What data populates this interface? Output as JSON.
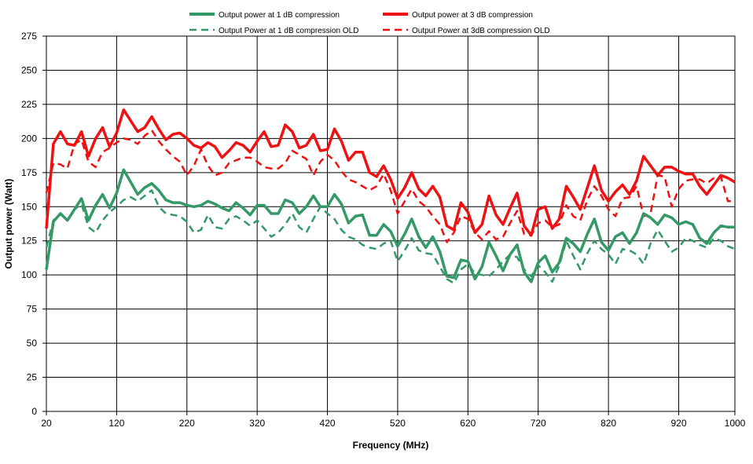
{
  "chart_data": {
    "type": "line",
    "title": "",
    "xlabel": "Frequency (MHz)",
    "ylabel": "Output power (Watt)",
    "xlim": [
      20,
      1000
    ],
    "ylim": [
      0,
      275
    ],
    "x_ticks": [
      20,
      120,
      220,
      320,
      420,
      520,
      620,
      720,
      820,
      920,
      1000
    ],
    "y_ticks": [
      0,
      25,
      50,
      75,
      100,
      125,
      150,
      175,
      200,
      225,
      250,
      275
    ],
    "grid": true,
    "legend_position": "top",
    "series": [
      {
        "name": "Output power at 1 dB compression",
        "color": "#339966",
        "dash": "solid",
        "x": [
          20,
          30,
          40,
          50,
          60,
          70,
          80,
          90,
          100,
          110,
          120,
          130,
          140,
          150,
          160,
          170,
          180,
          190,
          200,
          210,
          220,
          230,
          240,
          250,
          260,
          270,
          280,
          290,
          300,
          310,
          320,
          330,
          340,
          350,
          360,
          370,
          380,
          390,
          400,
          410,
          420,
          430,
          440,
          450,
          460,
          470,
          480,
          490,
          500,
          510,
          520,
          530,
          540,
          550,
          560,
          570,
          580,
          590,
          600,
          610,
          620,
          630,
          640,
          650,
          660,
          670,
          680,
          690,
          700,
          710,
          720,
          730,
          740,
          750,
          760,
          770,
          780,
          790,
          800,
          810,
          820,
          830,
          840,
          850,
          860,
          870,
          880,
          890,
          900,
          910,
          920,
          930,
          940,
          950,
          960,
          970,
          980,
          990,
          1000
        ],
        "y": [
          104,
          139,
          145,
          140,
          148,
          156,
          140,
          151,
          159,
          149,
          160,
          177,
          168,
          159,
          164,
          167,
          162,
          155,
          153,
          153,
          151,
          150,
          151,
          154,
          152,
          149,
          147,
          153,
          149,
          144,
          151,
          151,
          145,
          145,
          155,
          153,
          145,
          150,
          158,
          150,
          150,
          159,
          152,
          138,
          143,
          144,
          129,
          129,
          137,
          132,
          121,
          130,
          141,
          128,
          120,
          128,
          117,
          99,
          98,
          111,
          110,
          97,
          106,
          124,
          114,
          103,
          115,
          122,
          102,
          95,
          109,
          114,
          102,
          109,
          127,
          123,
          117,
          130,
          141,
          124,
          118,
          128,
          131,
          123,
          131,
          145,
          142,
          137,
          144,
          142,
          137,
          139,
          137,
          127,
          123,
          131,
          136,
          135,
          135
        ]
      },
      {
        "name": "Output power at 3 dB compression",
        "color": "#ee1111",
        "dash": "solid",
        "x": [
          20,
          30,
          40,
          50,
          60,
          70,
          80,
          90,
          100,
          110,
          120,
          130,
          140,
          150,
          160,
          170,
          180,
          190,
          200,
          210,
          220,
          230,
          240,
          250,
          260,
          270,
          280,
          290,
          300,
          310,
          320,
          330,
          340,
          350,
          360,
          370,
          380,
          390,
          400,
          410,
          420,
          430,
          440,
          450,
          460,
          470,
          480,
          490,
          500,
          510,
          520,
          530,
          540,
          550,
          560,
          570,
          580,
          590,
          600,
          610,
          620,
          630,
          640,
          650,
          660,
          670,
          680,
          690,
          700,
          710,
          720,
          730,
          740,
          750,
          760,
          770,
          780,
          790,
          800,
          810,
          820,
          830,
          840,
          850,
          860,
          870,
          880,
          890,
          900,
          910,
          920,
          930,
          940,
          950,
          960,
          970,
          980,
          990,
          1000
        ],
        "y": [
          134,
          196,
          205,
          196,
          195,
          205,
          187,
          200,
          208,
          194,
          204,
          221,
          213,
          205,
          208,
          216,
          207,
          199,
          203,
          204,
          200,
          195,
          193,
          197,
          194,
          186,
          191,
          197,
          195,
          190,
          198,
          205,
          194,
          195,
          210,
          205,
          193,
          195,
          203,
          191,
          192,
          207,
          198,
          184,
          190,
          190,
          175,
          172,
          180,
          170,
          156,
          164,
          175,
          163,
          158,
          165,
          157,
          136,
          133,
          153,
          146,
          131,
          137,
          158,
          144,
          137,
          149,
          160,
          136,
          129,
          148,
          150,
          134,
          141,
          165,
          157,
          148,
          164,
          180,
          162,
          154,
          161,
          166,
          159,
          169,
          187,
          180,
          173,
          179,
          179,
          176,
          174,
          174,
          165,
          159,
          166,
          173,
          171,
          168
        ]
      },
      {
        "name": "Output Power at 1 dB compression OLD",
        "color": "#339966",
        "dash": "dashed",
        "x": [
          20,
          30,
          40,
          50,
          60,
          70,
          80,
          90,
          100,
          110,
          120,
          130,
          140,
          150,
          160,
          170,
          180,
          190,
          200,
          210,
          220,
          230,
          240,
          250,
          260,
          270,
          280,
          290,
          300,
          310,
          320,
          330,
          340,
          350,
          360,
          370,
          380,
          390,
          400,
          410,
          420,
          430,
          440,
          450,
          460,
          470,
          480,
          490,
          500,
          510,
          520,
          530,
          540,
          550,
          560,
          570,
          580,
          590,
          600,
          610,
          620,
          630,
          640,
          650,
          660,
          670,
          680,
          690,
          700,
          710,
          720,
          730,
          740,
          750,
          760,
          770,
          780,
          790,
          800,
          810,
          820,
          830,
          840,
          850,
          860,
          870,
          880,
          890,
          900,
          910,
          920,
          930,
          940,
          950,
          960,
          970,
          980,
          990,
          1000
        ],
        "y": [
          120,
          140,
          145,
          140,
          148,
          152,
          135,
          131,
          140,
          146,
          150,
          155,
          157,
          154,
          158,
          162,
          150,
          145,
          144,
          143,
          139,
          131,
          133,
          144,
          135,
          134,
          141,
          143,
          140,
          136,
          140,
          134,
          128,
          131,
          137,
          145,
          135,
          131,
          141,
          150,
          145,
          141,
          133,
          128,
          126,
          122,
          120,
          119,
          123,
          125,
          110,
          118,
          127,
          118,
          116,
          115,
          106,
          97,
          94,
          104,
          108,
          101,
          100,
          99,
          104,
          110,
          115,
          113,
          104,
          99,
          107,
          102,
          95,
          107,
          125,
          114,
          104,
          116,
          125,
          119,
          115,
          108,
          119,
          118,
          115,
          108,
          123,
          133,
          125,
          117,
          120,
          127,
          125,
          122,
          120,
          127,
          125,
          121,
          119
        ]
      },
      {
        "name": "Output Power at 3dB compression OLD",
        "color": "#ee1111",
        "dash": "dashed",
        "x": [
          20,
          30,
          40,
          50,
          60,
          70,
          80,
          90,
          100,
          110,
          120,
          130,
          140,
          150,
          160,
          170,
          180,
          190,
          200,
          210,
          220,
          230,
          240,
          250,
          260,
          270,
          280,
          290,
          300,
          310,
          320,
          330,
          340,
          350,
          360,
          370,
          380,
          390,
          400,
          410,
          420,
          430,
          440,
          450,
          460,
          470,
          480,
          490,
          500,
          510,
          520,
          530,
          540,
          550,
          560,
          570,
          580,
          590,
          600,
          610,
          620,
          630,
          640,
          650,
          660,
          670,
          680,
          690,
          700,
          710,
          720,
          730,
          740,
          750,
          760,
          770,
          780,
          790,
          800,
          810,
          820,
          830,
          840,
          850,
          860,
          870,
          880,
          890,
          900,
          910,
          920,
          930,
          940,
          950,
          960,
          970,
          980,
          990,
          1000
        ],
        "y": [
          160,
          182,
          181,
          178,
          196,
          199,
          183,
          179,
          190,
          193,
          197,
          200,
          199,
          196,
          202,
          206,
          198,
          192,
          187,
          183,
          173,
          180,
          192,
          180,
          173,
          175,
          182,
          184,
          186,
          186,
          183,
          179,
          178,
          178,
          182,
          191,
          188,
          185,
          173,
          183,
          188,
          184,
          176,
          170,
          168,
          165,
          162,
          165,
          174,
          162,
          145,
          154,
          163,
          154,
          150,
          143,
          137,
          124,
          131,
          143,
          141,
          131,
          126,
          132,
          126,
          128,
          138,
          147,
          130,
          129,
          138,
          140,
          135,
          137,
          151,
          143,
          140,
          155,
          165,
          158,
          148,
          143,
          156,
          157,
          165,
          143,
          145,
          173,
          172,
          150,
          163,
          169,
          170,
          170,
          167,
          171,
          172,
          154,
          154
        ]
      }
    ]
  }
}
